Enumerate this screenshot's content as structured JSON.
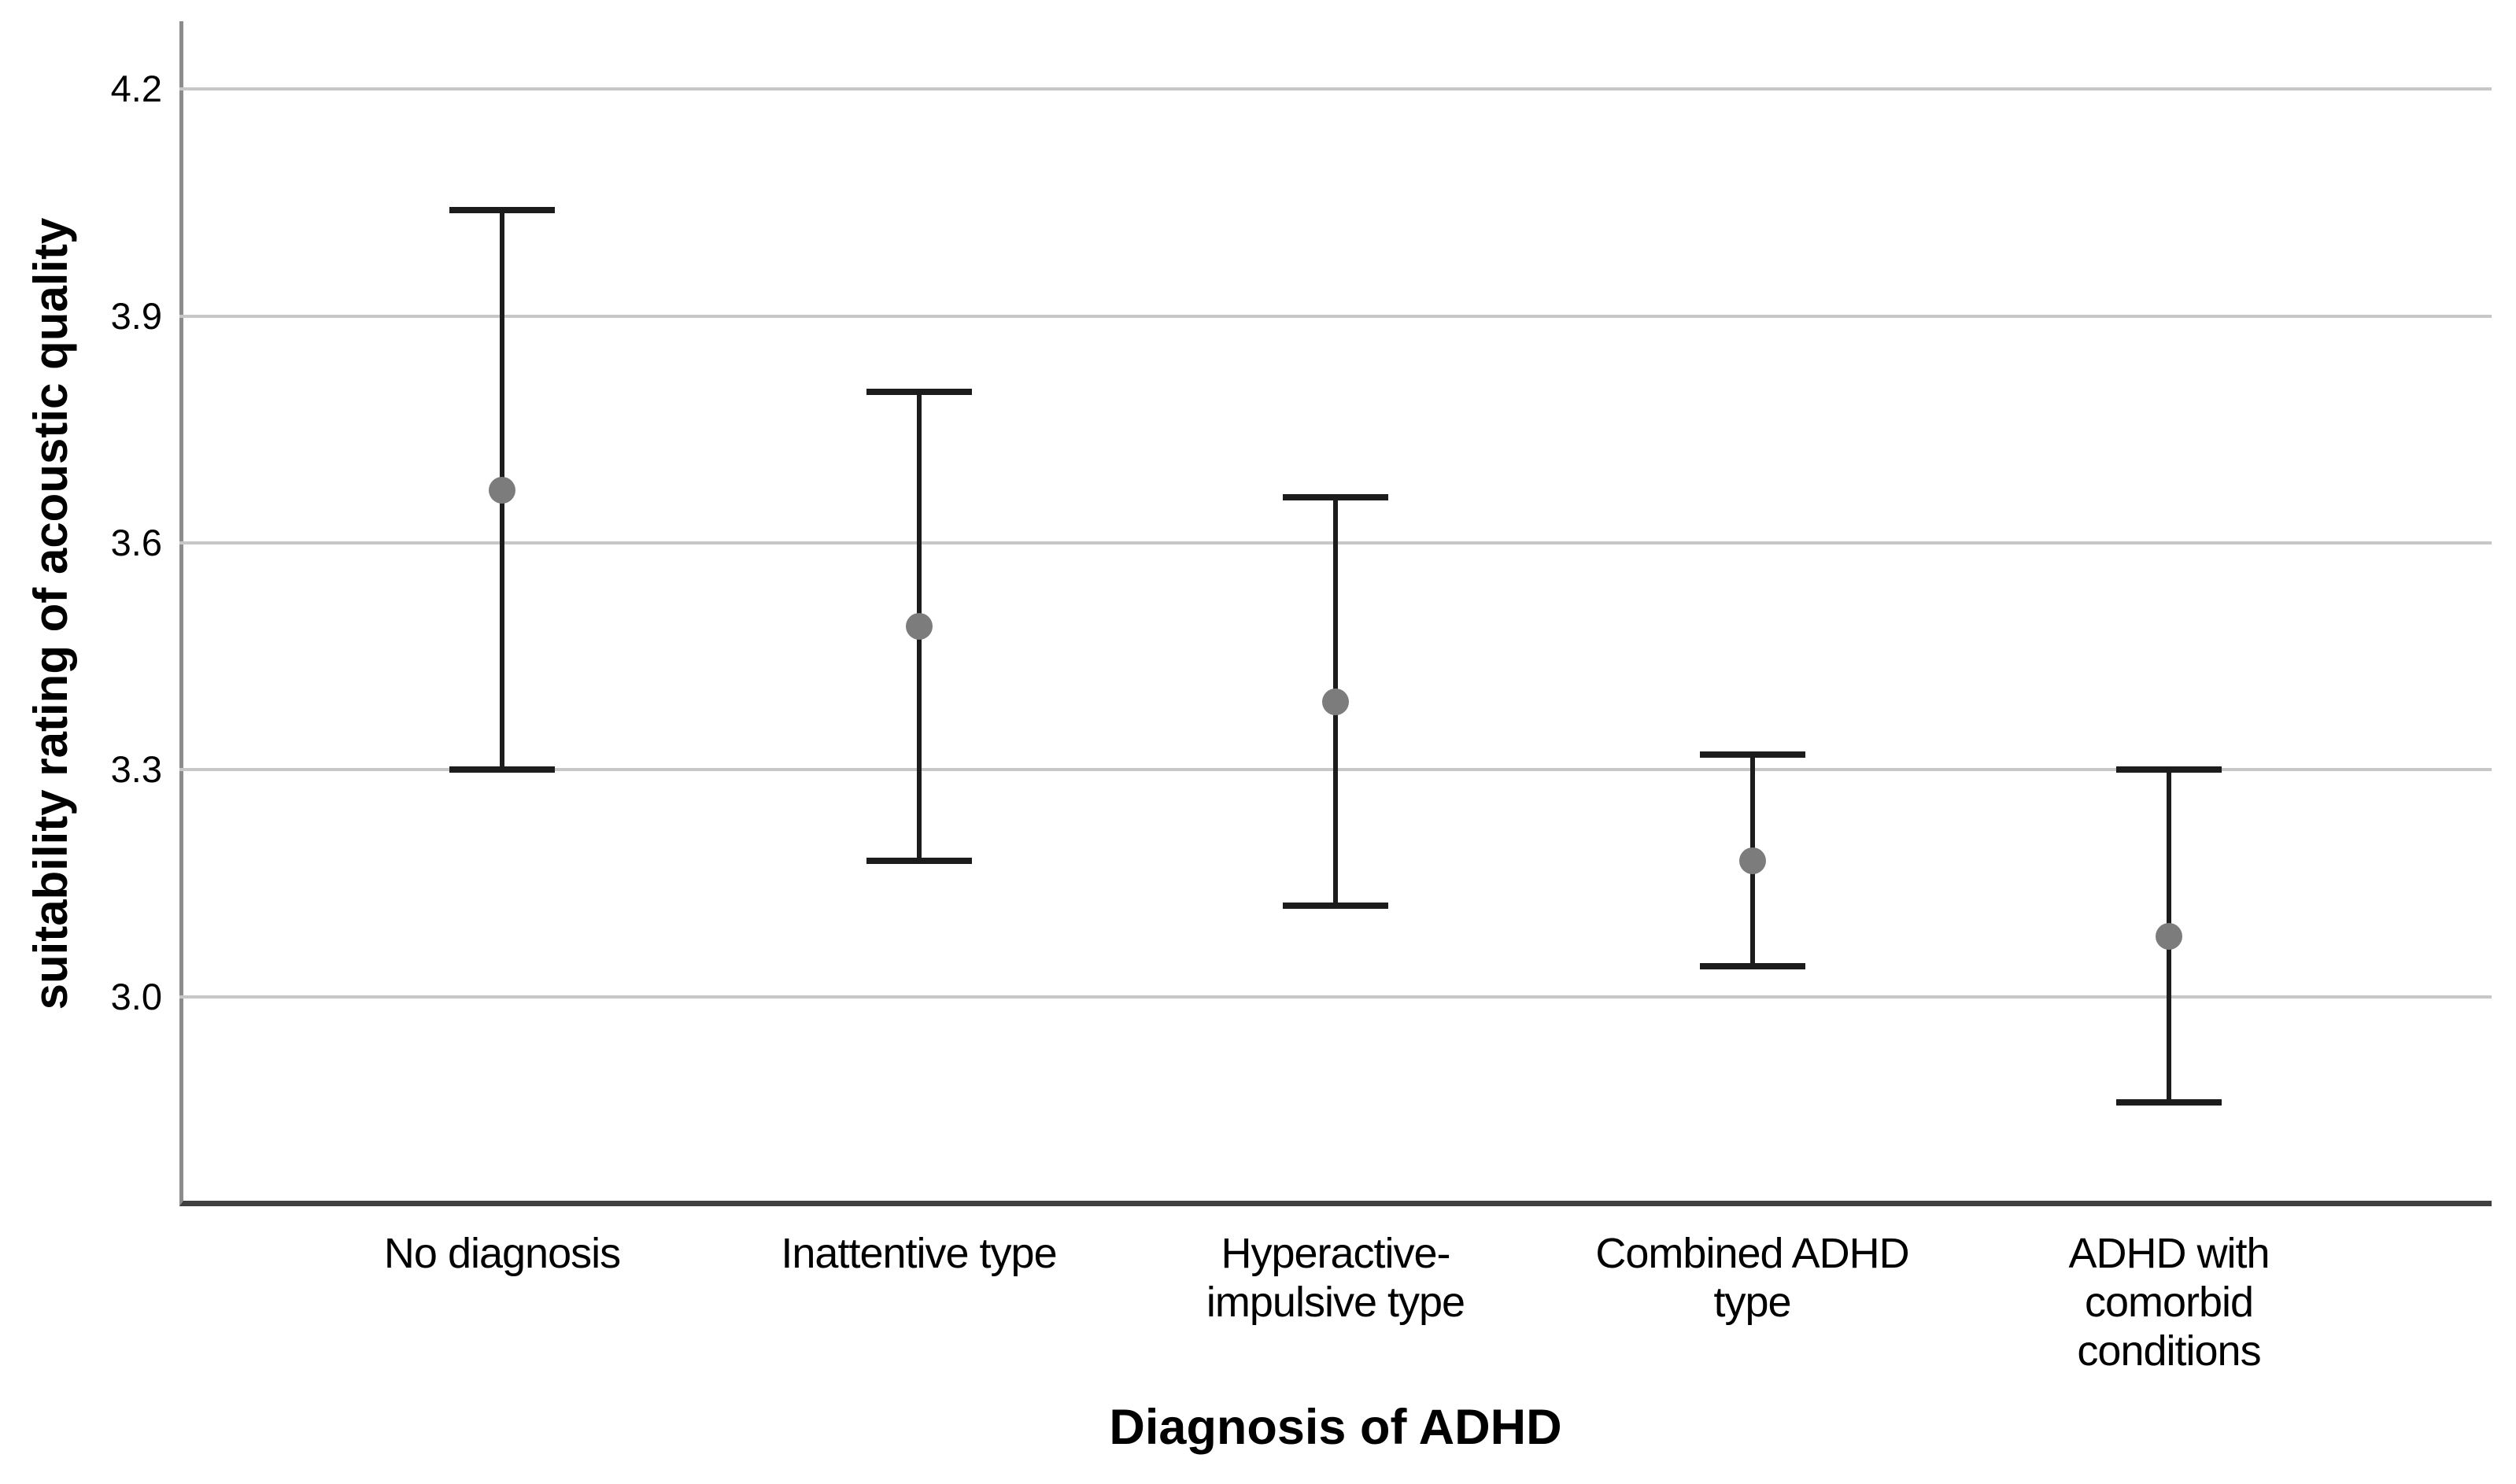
{
  "figure": {
    "x_axis_title": "Diagnosis of ADHD",
    "y_axis_title": "suitability rating of acoustic quality"
  },
  "chart_data": {
    "type": "scatter",
    "subtype": "mean-with-error-bars",
    "title": "",
    "xlabel": "Diagnosis of ADHD",
    "ylabel": "suitability rating of acoustic quality",
    "categories": [
      "No diagnosis",
      "Inattentive type",
      "Hyperactive-\nimpulsive type",
      "Combined ADHD\ntype",
      "ADHD with\ncomorbid\nconditions"
    ],
    "series": [
      {
        "name": "mean",
        "values": [
          3.67,
          3.49,
          3.39,
          3.18,
          3.08
        ]
      },
      {
        "name": "upper_ci",
        "values": [
          4.04,
          3.8,
          3.66,
          3.32,
          3.3
        ]
      },
      {
        "name": "lower_ci",
        "values": [
          3.3,
          3.18,
          3.12,
          3.04,
          2.86
        ]
      }
    ],
    "y_ticks": [
      "4.2",
      "3.9",
      "3.6",
      "3.3",
      "3.0"
    ],
    "y_tick_values": [
      4.2,
      3.9,
      3.6,
      3.3,
      3.0
    ],
    "ylim": [
      2.723,
      4.29
    ],
    "grid": "horizontal",
    "legend": "none",
    "marker": "filled-circle",
    "colors": {
      "error_bar": "#1c1c1c",
      "mean_marker": "#7c7c7c",
      "gridline": "#c7c7c7",
      "y_axis_line": "#8c8c8c",
      "x_axis_line": "#404040",
      "text": "#000000",
      "background": "#ffffff"
    }
  }
}
